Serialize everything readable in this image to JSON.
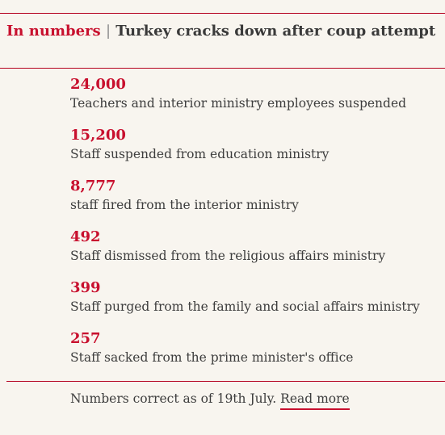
{
  "header": {
    "kicker": "In numbers",
    "separator": "|",
    "title": "Turkey cracks down after coup attempt"
  },
  "stats": [
    {
      "value": "24,000",
      "label": "Teachers and interior ministry employees suspended"
    },
    {
      "value": "15,200",
      "label": "Staff suspended from education ministry"
    },
    {
      "value": "8,777",
      "label": "staff fired from the interior ministry"
    },
    {
      "value": "492",
      "label": "Staff dismissed from the religious affairs ministry"
    },
    {
      "value": "399",
      "label": "Staff purged from the family and social affairs ministry"
    },
    {
      "value": "257",
      "label": "Staff sacked from the prime minister's office"
    }
  ],
  "footer": {
    "note": "Numbers correct as of 19th July.",
    "link_label": "Read more"
  },
  "colors": {
    "accent": "#c8102e",
    "background": "#f8f5ef",
    "text": "#3d3d3d"
  }
}
